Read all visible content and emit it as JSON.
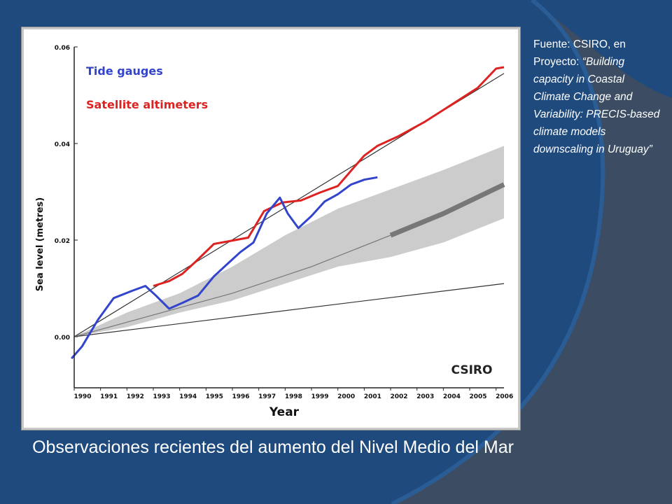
{
  "theme": {
    "background": "#1f4a7e",
    "swoosh": "#3c4d63",
    "text": "#ffffff"
  },
  "source_note": {
    "prefix": "Fuente: CSIRO, en Proyecto: ",
    "project": "“Building capacity in Coastal Climate Change and Variability: PRECIS-based climate models downscaling in Uruguay”"
  },
  "caption": "Observaciones recientes del aumento del Nivel Medio del Mar",
  "chart_data": {
    "type": "line",
    "xlabel": "Year",
    "ylabel": "Sea level (metres)",
    "watermark": "CSIRO",
    "xlim": [
      1990,
      2006.3
    ],
    "ylim": [
      -0.01,
      0.06
    ],
    "x_ticks": [
      "1990",
      "1991",
      "1992",
      "1993",
      "1994",
      "1995",
      "1996",
      "1997",
      "1998",
      "1999",
      "2000",
      "2001",
      "2002",
      "2003",
      "2004",
      "2005",
      "2006"
    ],
    "y_ticks": [
      "0.00",
      "0.02",
      "0.04",
      "0.06"
    ],
    "legend_position": "top-left",
    "series": [
      {
        "name": "Tide gauges",
        "color": "#3344cc",
        "x": [
          1989.9,
          1990.3,
          1990.9,
          1991.5,
          1992.2,
          1992.7,
          1993.1,
          1993.6,
          1994.1,
          1994.7,
          1995.3,
          1995.9,
          1996.3,
          1996.8,
          1997.3,
          1997.8,
          1998.1,
          1998.5,
          1999.0,
          1999.5,
          2000.0,
          2000.5,
          2001.0,
          2001.5
        ],
        "y": [
          -0.0045,
          -0.002,
          0.0035,
          0.008,
          0.0095,
          0.0105,
          0.0085,
          0.0058,
          0.007,
          0.0085,
          0.0125,
          0.0155,
          0.0175,
          0.0195,
          0.0255,
          0.0288,
          0.0255,
          0.0225,
          0.025,
          0.028,
          0.0295,
          0.0315,
          0.0325,
          0.033
        ]
      },
      {
        "name": "Satellite altimeters",
        "color": "#dd2222",
        "x": [
          1993.0,
          1993.6,
          1994.1,
          1994.6,
          1995.3,
          1995.9,
          1996.6,
          1997.2,
          1997.9,
          1998.6,
          1999.3,
          2000.0,
          2000.6,
          2001.0,
          2001.5,
          2002.3,
          2003.3,
          2004.3,
          2005.3,
          2006.0,
          2006.3
        ],
        "y": [
          0.0105,
          0.0115,
          0.013,
          0.0155,
          0.0192,
          0.0198,
          0.0205,
          0.026,
          0.0278,
          0.0282,
          0.0298,
          0.0312,
          0.035,
          0.0375,
          0.0395,
          0.0415,
          0.0445,
          0.048,
          0.0515,
          0.0555,
          0.0558
        ]
      },
      {
        "name": "",
        "color": "#333333",
        "x": [
          1990.0,
          2006.3
        ],
        "y": [
          0.0,
          0.0545
        ]
      },
      {
        "name": "",
        "color": "#333333",
        "x": [
          1990.0,
          2006.3
        ],
        "y": [
          0.0,
          0.011
        ]
      },
      {
        "name": "",
        "color": "#777777",
        "x": [
          1990.0,
          1993.0,
          1996.0,
          1999.0,
          2002.0,
          2004.0,
          2006.3
        ],
        "y": [
          0.0,
          0.0045,
          0.009,
          0.0145,
          0.021,
          0.0255,
          0.0315
        ]
      }
    ],
    "band": {
      "color": "#cccccc",
      "x": [
        1990.0,
        1992.0,
        1994.0,
        1996.0,
        1998.0,
        2000.0,
        2002.0,
        2004.0,
        2006.3
      ],
      "upper": [
        0.0,
        0.005,
        0.009,
        0.0145,
        0.021,
        0.0265,
        0.0305,
        0.0345,
        0.0395
      ],
      "lower": [
        0.0,
        0.002,
        0.005,
        0.0075,
        0.011,
        0.0145,
        0.0165,
        0.0195,
        0.0245
      ]
    }
  }
}
